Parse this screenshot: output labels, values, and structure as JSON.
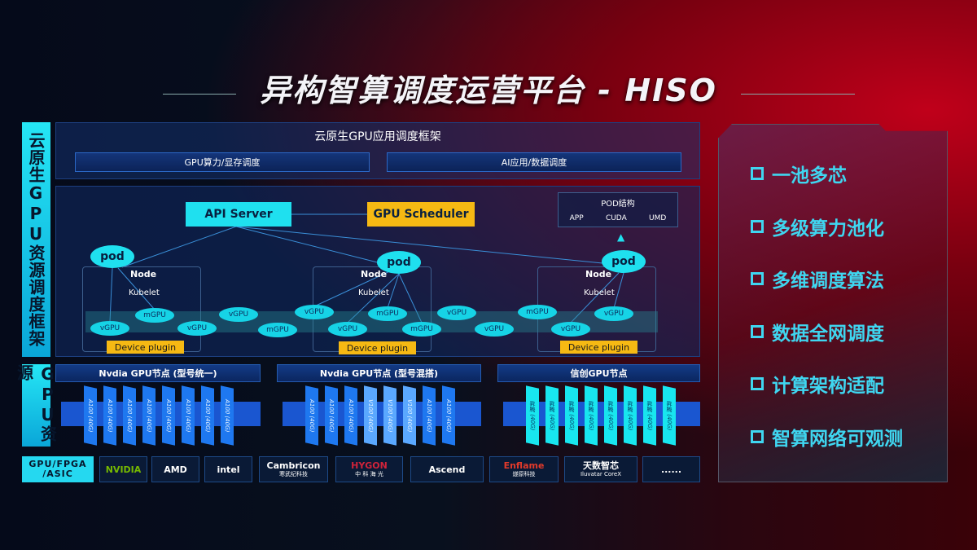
{
  "title": "异构智算调度运营平台 - HISO",
  "side_labels": {
    "framework": "云原生GPU资源调度框架",
    "resources": "GPU资源",
    "chips": "GPU/FPGA /ASIC"
  },
  "framework": {
    "title": "云原生GPU应用调度框架",
    "sub1": "GPU算力/显存调度",
    "sub2": "AI应用/数据调度"
  },
  "scheduler": {
    "api_server": "API Server",
    "gpu_scheduler": "GPU Scheduler",
    "pod_structure": {
      "title": "POD结构",
      "items": [
        "APP",
        "CUDA",
        "UMD"
      ]
    },
    "pod": "pod",
    "node": "Node",
    "kubelet": "Kubelet",
    "device_plugin": "Device plugin",
    "virtual_gpus": [
      "vGPU",
      "mGPU",
      "vGPU",
      "vGPU",
      "mGPU",
      "vGPU",
      "vGPU",
      "mGPU",
      "mGPU",
      "vGPU",
      "vGPU",
      "mGPU",
      "vGPU",
      "vGPU"
    ]
  },
  "gpu_groups": [
    {
      "title": "Nvdia GPU节点 (型号统一)",
      "cards": [
        "A100 (40G)",
        "A100 (40G)",
        "A100 (40G)",
        "A100 (40G)",
        "A100 (40G)",
        "A100 (40G)",
        "A100 (40G)",
        "A100 (40G)"
      ]
    },
    {
      "title": "Nvdia GPU节点 (型号混搭)",
      "cards": [
        "A100 (40G)",
        "A100 (40G)",
        "A100 (40G)",
        "V100 (40G)",
        "V100 (40G)",
        "V100 (40G)",
        "A100 (40G)",
        "A100 (40G)"
      ]
    },
    {
      "title": "信创GPU节点",
      "cards": [
        "昇腾 (40G)",
        "昇腾 (40G)",
        "昇腾 (40G)",
        "昇腾 (40G)",
        "昇腾 (40G)",
        "昇腾 (40G)",
        "昇腾 (40G)",
        "昇腾 (40G)"
      ]
    }
  ],
  "vendors": [
    {
      "name": "NVIDIA"
    },
    {
      "name": "AMD"
    },
    {
      "name": "intel"
    },
    {
      "name": "Cambricon",
      "sub": "寒武纪科技"
    },
    {
      "name": "HYGON",
      "sub": "中 科 海 光"
    },
    {
      "name": "Ascend"
    },
    {
      "name": "Enflame",
      "sub": "燧原科技"
    },
    {
      "name": "天数智芯",
      "sub": "Iluvatar CoreX"
    },
    {
      "name": "......"
    }
  ],
  "features": [
    "一池多芯",
    "多级算力池化",
    "多维调度算法",
    "数据全网调度",
    "计算架构适配",
    "智算网络可观测"
  ],
  "colors": {
    "cyan": "#1fe0ef",
    "yellow": "#f6b913",
    "blue": "#1a56d0",
    "red": "#c0001a"
  }
}
